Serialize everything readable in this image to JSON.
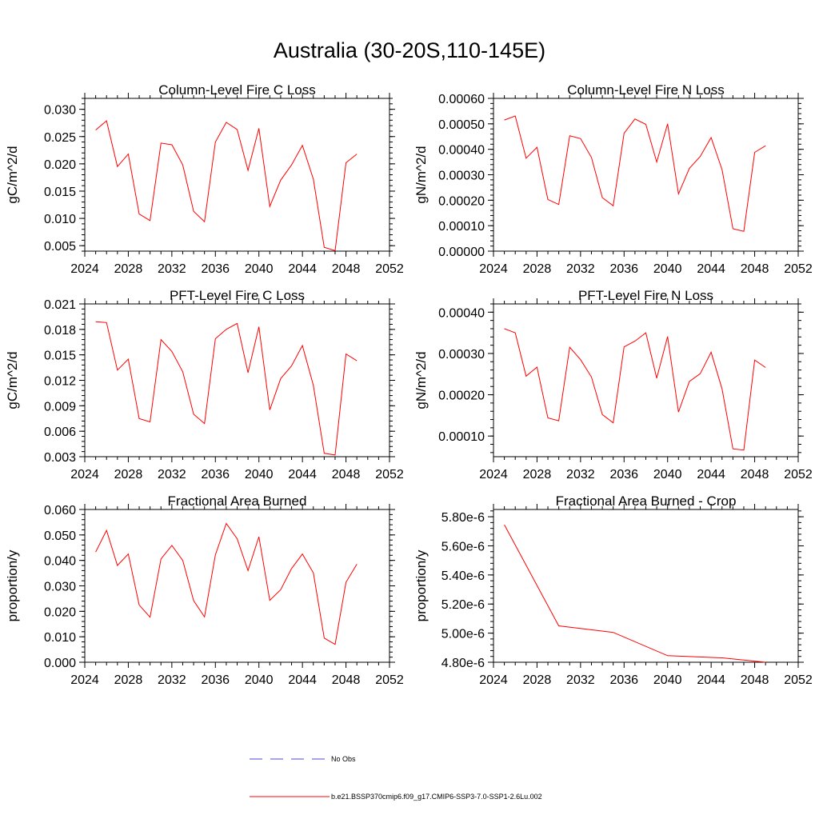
{
  "title": "Australia (30-20S,110-145E)",
  "colors": {
    "model": "#ff0000",
    "obs": "#4b4bd0",
    "axis": "#000000"
  },
  "legend": {
    "obs_label": "No Obs",
    "model_label": "b.e21.BSSP370cmip6.f09_g17.CMIP6-SSP3-7.0-SSP1-2.6Lu.002"
  },
  "chart_data": [
    {
      "type": "line",
      "title": "Column-Level Fire C Loss",
      "ylabel": "gC/m^2/d",
      "xlim": [
        2024,
        2052
      ],
      "ylim": [
        0.004,
        0.032
      ],
      "xticks": [
        2024,
        2028,
        2032,
        2036,
        2040,
        2044,
        2048,
        2052
      ],
      "xtick_labels": [
        "2024",
        "2028",
        "2032",
        "2036",
        "2040",
        "2044",
        "2048",
        "2052"
      ],
      "yticks": [
        0.005,
        0.01,
        0.015,
        0.02,
        0.025,
        0.03
      ],
      "ytick_labels": [
        "0.005",
        "0.010",
        "0.015",
        "0.020",
        "0.025",
        "0.030"
      ],
      "series": [
        {
          "x": [
            2025,
            2026,
            2027,
            2028,
            2029,
            2030,
            2031,
            2032,
            2033,
            2034,
            2035,
            2036,
            2037,
            2038,
            2039,
            2040,
            2041,
            2042,
            2043,
            2044,
            2045,
            2046,
            2047,
            2048,
            2049
          ],
          "y": [
            0.0262,
            0.0279,
            0.0195,
            0.0218,
            0.0108,
            0.0096,
            0.0238,
            0.0235,
            0.0198,
            0.0113,
            0.0094,
            0.024,
            0.0276,
            0.0263,
            0.0188,
            0.0265,
            0.0122,
            0.017,
            0.0198,
            0.0234,
            0.0172,
            0.0047,
            0.0041,
            0.0202,
            0.0218
          ]
        }
      ]
    },
    {
      "type": "line",
      "title": "Column-Level Fire N Loss",
      "ylabel": "gN/m^2/d",
      "xlim": [
        2024,
        2052
      ],
      "ylim": [
        0.0,
        0.0006
      ],
      "xticks": [
        2024,
        2028,
        2032,
        2036,
        2040,
        2044,
        2048,
        2052
      ],
      "xtick_labels": [
        "2024",
        "2028",
        "2032",
        "2036",
        "2040",
        "2044",
        "2048",
        "2052"
      ],
      "yticks": [
        0.0,
        0.0001,
        0.0002,
        0.0003,
        0.0004,
        0.0005,
        0.0006
      ],
      "ytick_labels": [
        "0.00000",
        "0.00010",
        "0.00020",
        "0.00030",
        "0.00040",
        "0.00050",
        "0.00060"
      ],
      "series": [
        {
          "x": [
            2025,
            2026,
            2027,
            2028,
            2029,
            2030,
            2031,
            2032,
            2033,
            2034,
            2035,
            2036,
            2037,
            2038,
            2039,
            2040,
            2041,
            2042,
            2043,
            2044,
            2045,
            2046,
            2047,
            2048,
            2049
          ],
          "y": [
            0.000515,
            0.000531,
            0.000365,
            0.000408,
            0.000203,
            0.000183,
            0.000453,
            0.000442,
            0.000368,
            0.00021,
            0.000178,
            0.000463,
            0.000519,
            0.000498,
            0.00035,
            0.0005,
            0.000225,
            0.000325,
            0.000372,
            0.000446,
            0.00032,
            8.8e-05,
            7.8e-05,
            0.000388,
            0.000414
          ]
        }
      ]
    },
    {
      "type": "line",
      "title": "PFT-Level Fire C Loss",
      "ylabel": "gC/m^2/d",
      "xlim": [
        2024,
        2052
      ],
      "ylim": [
        0.003,
        0.021
      ],
      "xticks": [
        2024,
        2028,
        2032,
        2036,
        2040,
        2044,
        2048,
        2052
      ],
      "xtick_labels": [
        "2024",
        "2028",
        "2032",
        "2036",
        "2040",
        "2044",
        "2048",
        "2052"
      ],
      "yticks": [
        0.003,
        0.006,
        0.009,
        0.012,
        0.015,
        0.018,
        0.021
      ],
      "ytick_labels": [
        "0.003",
        "0.006",
        "0.009",
        "0.012",
        "0.015",
        "0.018",
        "0.021"
      ],
      "series": [
        {
          "x": [
            2025,
            2026,
            2027,
            2028,
            2029,
            2030,
            2031,
            2032,
            2033,
            2034,
            2035,
            2036,
            2037,
            2038,
            2039,
            2040,
            2041,
            2042,
            2043,
            2044,
            2045,
            2046,
            2047,
            2048,
            2049
          ],
          "y": [
            0.0189,
            0.0188,
            0.0132,
            0.0145,
            0.0075,
            0.0071,
            0.0168,
            0.0154,
            0.013,
            0.008,
            0.0069,
            0.0169,
            0.018,
            0.0187,
            0.0129,
            0.0183,
            0.0085,
            0.0122,
            0.0137,
            0.0161,
            0.0114,
            0.0034,
            0.0032,
            0.0151,
            0.0143
          ]
        }
      ]
    },
    {
      "type": "line",
      "title": "PFT-Level Fire N Loss",
      "ylabel": "gN/m^2/d",
      "xlim": [
        2024,
        2052
      ],
      "ylim": [
        5e-05,
        0.00042
      ],
      "xticks": [
        2024,
        2028,
        2032,
        2036,
        2040,
        2044,
        2048,
        2052
      ],
      "xtick_labels": [
        "2024",
        "2028",
        "2032",
        "2036",
        "2040",
        "2044",
        "2048",
        "2052"
      ],
      "yticks": [
        0.0001,
        0.0002,
        0.0003,
        0.0004
      ],
      "ytick_labels": [
        "0.00010",
        "0.00020",
        "0.00030",
        "0.00040"
      ],
      "series": [
        {
          "x": [
            2025,
            2026,
            2027,
            2028,
            2029,
            2030,
            2031,
            2032,
            2033,
            2034,
            2035,
            2036,
            2037,
            2038,
            2039,
            2040,
            2041,
            2042,
            2043,
            2044,
            2045,
            2046,
            2047,
            2048,
            2049
          ],
          "y": [
            0.00036,
            0.00035,
            0.000245,
            0.000267,
            0.000144,
            0.000137,
            0.000315,
            0.000285,
            0.000243,
            0.000152,
            0.000132,
            0.000316,
            0.00033,
            0.00035,
            0.00024,
            0.000341,
            0.000158,
            0.000232,
            0.000251,
            0.000303,
            0.000214,
            6.9e-05,
            6.6e-05,
            0.000284,
            0.000266
          ]
        }
      ]
    },
    {
      "type": "line",
      "title": "Fractional Area Burned",
      "ylabel": "proportion/y",
      "xlim": [
        2024,
        2052
      ],
      "ylim": [
        0.0,
        0.06
      ],
      "xticks": [
        2024,
        2028,
        2032,
        2036,
        2040,
        2044,
        2048,
        2052
      ],
      "xtick_labels": [
        "2024",
        "2028",
        "2032",
        "2036",
        "2040",
        "2044",
        "2048",
        "2052"
      ],
      "yticks": [
        0.0,
        0.01,
        0.02,
        0.03,
        0.04,
        0.05,
        0.06
      ],
      "ytick_labels": [
        "0.000",
        "0.010",
        "0.020",
        "0.030",
        "0.040",
        "0.050",
        "0.060"
      ],
      "series": [
        {
          "x": [
            2025,
            2026,
            2027,
            2028,
            2029,
            2030,
            2031,
            2032,
            2033,
            2034,
            2035,
            2036,
            2037,
            2038,
            2039,
            2040,
            2041,
            2042,
            2043,
            2044,
            2045,
            2046,
            2047,
            2048,
            2049
          ],
          "y": [
            0.0433,
            0.0518,
            0.038,
            0.0425,
            0.0225,
            0.0177,
            0.0406,
            0.0459,
            0.04,
            0.0242,
            0.0178,
            0.0422,
            0.0545,
            0.0485,
            0.036,
            0.0493,
            0.0243,
            0.0285,
            0.0368,
            0.0425,
            0.0351,
            0.0095,
            0.007,
            0.0314,
            0.0385
          ]
        }
      ]
    },
    {
      "type": "line",
      "title": "Fractional Area Burned - Crop",
      "ylabel": "proportion/y",
      "xlim": [
        2024,
        2052
      ],
      "ylim": [
        4.8e-06,
        5.85e-06
      ],
      "xticks": [
        2024,
        2028,
        2032,
        2036,
        2040,
        2044,
        2048,
        2052
      ],
      "xtick_labels": [
        "2024",
        "2028",
        "2032",
        "2036",
        "2040",
        "2044",
        "2048",
        "2052"
      ],
      "yticks": [
        4.8e-06,
        5e-06,
        5.2e-06,
        5.4e-06,
        5.6e-06,
        5.8e-06
      ],
      "ytick_labels": [
        "4.80e-6",
        "5.00e-6",
        "5.20e-6",
        "5.40e-6",
        "5.60e-6",
        "5.80e-6"
      ],
      "series": [
        {
          "x": [
            2025,
            2030,
            2035,
            2040,
            2045,
            2049
          ],
          "y": [
            5.745e-06,
            5.05e-06,
            5.005e-06,
            4.845e-06,
            4.83e-06,
            4.8e-06
          ]
        }
      ]
    }
  ]
}
